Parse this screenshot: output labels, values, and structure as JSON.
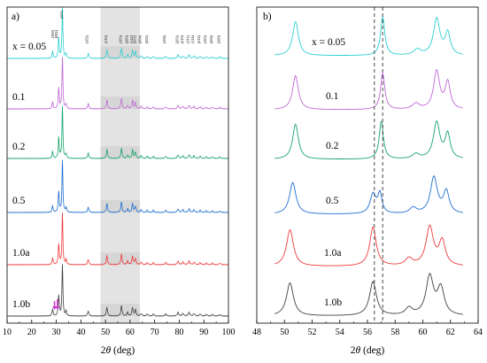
{
  "chart_data": [
    {
      "panel": "a)",
      "type": "line",
      "xlabel_pre": "2",
      "xlabel_theta": "θ",
      "xlabel_post": " (deg)",
      "xlim": [
        10,
        100
      ],
      "xticks": [
        "10",
        "20",
        "30",
        "40",
        "50",
        "60",
        "70",
        "80",
        "90",
        "100"
      ],
      "shaded_range": [
        48,
        64
      ],
      "series": [
        {
          "name": "x = 0.05",
          "color": "#2ecfcf"
        },
        {
          "name": "0.1",
          "color": "#c066d6"
        },
        {
          "name": "0.2",
          "color": "#17a36b"
        },
        {
          "name": "0.5",
          "color": "#1f6fd1"
        },
        {
          "name": "1.0a",
          "color": "#ee3a3a"
        },
        {
          "name": "1.0b",
          "color": "#404040"
        }
      ],
      "peaks": [
        {
          "x": 28.5,
          "h": 0.13,
          "w": 0.25
        },
        {
          "x": 31.0,
          "h": 0.4,
          "w": 0.25
        },
        {
          "x": 32.5,
          "h": 1.0,
          "w": 0.22
        },
        {
          "x": 34.0,
          "h": 0.09,
          "w": 0.25
        },
        {
          "x": 43.0,
          "h": 0.1,
          "w": 0.3
        },
        {
          "x": 50.6,
          "h": 0.17,
          "w": 0.3
        },
        {
          "x": 56.5,
          "h": 0.2,
          "w": 0.3
        },
        {
          "x": 59.0,
          "h": 0.07,
          "w": 0.3
        },
        {
          "x": 61.0,
          "h": 0.16,
          "w": 0.3
        },
        {
          "x": 62.2,
          "h": 0.12,
          "w": 0.3
        },
        {
          "x": 64.5,
          "h": 0.05,
          "w": 0.3
        },
        {
          "x": 67.0,
          "h": 0.04,
          "w": 0.3
        },
        {
          "x": 69.5,
          "h": 0.04,
          "w": 0.3
        },
        {
          "x": 74.5,
          "h": 0.04,
          "w": 0.35
        },
        {
          "x": 79.5,
          "h": 0.07,
          "w": 0.35
        },
        {
          "x": 81.5,
          "h": 0.05,
          "w": 0.35
        },
        {
          "x": 84.0,
          "h": 0.07,
          "w": 0.35
        },
        {
          "x": 86.0,
          "h": 0.05,
          "w": 0.35
        },
        {
          "x": 88.5,
          "h": 0.04,
          "w": 0.35
        },
        {
          "x": 91.0,
          "h": 0.03,
          "w": 0.35
        },
        {
          "x": 93.5,
          "h": 0.03,
          "w": 0.35
        },
        {
          "x": 96.5,
          "h": 0.03,
          "w": 0.35
        }
      ],
      "hkl_labels": [
        "(101)",
        "(100)",
        "(002)",
        "(102)",
        "(110)",
        "(103)",
        "(200)",
        "(112)",
        "(201)",
        "(004)",
        "(202)",
        "(104)",
        "(203)",
        "(210)",
        "(211)",
        "(114)",
        "(212)",
        "(105)",
        "(204)",
        "(300)"
      ],
      "hkl_positions": [
        32.6,
        29.0,
        30.6,
        43.0,
        50.6,
        56.6,
        59.2,
        61.1,
        62.3,
        64.5,
        67.2,
        74.5,
        79.6,
        81.6,
        84.0,
        86.0,
        88.5,
        91.0,
        93.5,
        96.5
      ],
      "arrow_color": "#cc33cc"
    },
    {
      "panel": "b)",
      "type": "line",
      "xlabel_pre": "2",
      "xlabel_theta": "θ",
      "xlabel_post": " (deg)",
      "xlim": [
        48,
        64
      ],
      "xticks": [
        "48",
        "50",
        "52",
        "54",
        "56",
        "58",
        "60",
        "62",
        "64"
      ],
      "dashed_lines_x": [
        56.5,
        57.1
      ],
      "series": [
        {
          "name": "x = 0.05",
          "color": "#2ecfcf",
          "peaks": [
            {
              "x": 50.8,
              "h": 0.7,
              "w": 0.25
            },
            {
              "x": 57.1,
              "h": 0.8,
              "w": 0.18
            },
            {
              "x": 59.6,
              "h": 0.12,
              "w": 0.3
            },
            {
              "x": 61.0,
              "h": 0.75,
              "w": 0.28
            },
            {
              "x": 61.8,
              "h": 0.45,
              "w": 0.22
            }
          ]
        },
        {
          "name": "0.1",
          "color": "#c066d6",
          "peaks": [
            {
              "x": 50.8,
              "h": 0.7,
              "w": 0.25
            },
            {
              "x": 57.1,
              "h": 0.75,
              "w": 0.18
            },
            {
              "x": 59.5,
              "h": 0.12,
              "w": 0.3
            },
            {
              "x": 61.0,
              "h": 0.78,
              "w": 0.26
            },
            {
              "x": 61.8,
              "h": 0.55,
              "w": 0.22
            }
          ]
        },
        {
          "name": "0.2",
          "color": "#17a36b",
          "peaks": [
            {
              "x": 50.8,
              "h": 0.72,
              "w": 0.25
            },
            {
              "x": 57.0,
              "h": 0.78,
              "w": 0.18
            },
            {
              "x": 59.5,
              "h": 0.1,
              "w": 0.3
            },
            {
              "x": 61.0,
              "h": 0.75,
              "w": 0.28
            },
            {
              "x": 61.8,
              "h": 0.5,
              "w": 0.22
            }
          ]
        },
        {
          "name": "0.5",
          "color": "#1f6fd1",
          "peaks": [
            {
              "x": 50.6,
              "h": 0.65,
              "w": 0.28
            },
            {
              "x": 56.4,
              "h": 0.4,
              "w": 0.25
            },
            {
              "x": 56.9,
              "h": 0.4,
              "w": 0.18
            },
            {
              "x": 59.3,
              "h": 0.12,
              "w": 0.3
            },
            {
              "x": 60.8,
              "h": 0.75,
              "w": 0.3
            },
            {
              "x": 61.7,
              "h": 0.45,
              "w": 0.25
            }
          ]
        },
        {
          "name": "1.0a",
          "color": "#ee3a3a",
          "peaks": [
            {
              "x": 50.4,
              "h": 0.75,
              "w": 0.3
            },
            {
              "x": 56.4,
              "h": 0.8,
              "w": 0.28
            },
            {
              "x": 59.0,
              "h": 0.15,
              "w": 0.3
            },
            {
              "x": 60.5,
              "h": 0.8,
              "w": 0.32
            },
            {
              "x": 61.4,
              "h": 0.5,
              "w": 0.28
            }
          ]
        },
        {
          "name": "1.0b",
          "color": "#404040",
          "peaks": [
            {
              "x": 50.4,
              "h": 0.68,
              "w": 0.3
            },
            {
              "x": 56.4,
              "h": 0.7,
              "w": 0.3
            },
            {
              "x": 59.0,
              "h": 0.15,
              "w": 0.3
            },
            {
              "x": 60.5,
              "h": 0.8,
              "w": 0.32
            },
            {
              "x": 61.3,
              "h": 0.55,
              "w": 0.3
            }
          ]
        }
      ]
    }
  ]
}
